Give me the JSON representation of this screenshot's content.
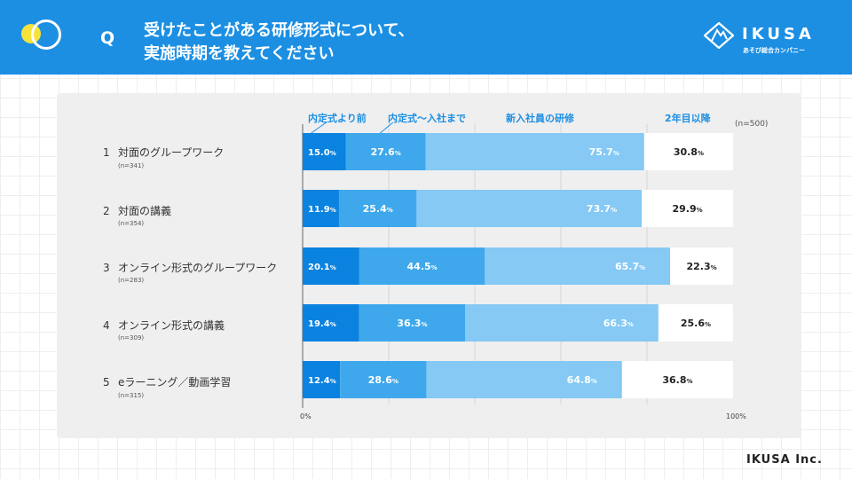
{
  "header": {
    "q": "Q",
    "title_line1": "受けたことがある研修形式について、",
    "title_line2": "実施時期を教えてください",
    "logo_text": "IKUSA",
    "logo_sub": "あそび総合カンパニー"
  },
  "footer": {
    "brand": "IKUSA Inc."
  },
  "colors": {
    "header_bg": "#1c8fe3",
    "seg1": "#0a82e0",
    "seg2": "#3fa8ec",
    "seg3": "#85c9f4",
    "seg4": "#ffffff"
  },
  "chart_data": {
    "type": "bar",
    "orientation": "horizontal",
    "title": "受けたことがある研修形式について、実施時期を教えてください",
    "n_total": "(n=500)",
    "legend": [
      "内定式より前",
      "内定式〜入社まで",
      "新入社員の研修",
      "2年目以降"
    ],
    "categories": [
      "対面のグループワーク",
      "対面の講義",
      "オンライン形式のグループワーク",
      "オンライン形式の講義",
      "eラーニング／動画学習"
    ],
    "category_numbers": [
      "1",
      "2",
      "3",
      "4",
      "5"
    ],
    "category_n": [
      "(n=341)",
      "(n=354)",
      "(n=283)",
      "(n=309)",
      "(n=315)"
    ],
    "series": [
      {
        "name": "内定式より前",
        "values": [
          15.0,
          11.9,
          20.1,
          19.4,
          12.4
        ]
      },
      {
        "name": "内定式〜入社まで",
        "values": [
          27.6,
          25.4,
          44.5,
          36.3,
          28.6
        ]
      },
      {
        "name": "新入社員の研修",
        "values": [
          75.7,
          73.7,
          65.7,
          66.3,
          64.8
        ]
      },
      {
        "name": "2年目以降",
        "values": [
          30.8,
          29.9,
          22.3,
          25.6,
          36.8
        ]
      }
    ],
    "value_unit": "%",
    "xlim": [
      0,
      100
    ],
    "axis_labels": [
      "0%",
      "100%"
    ]
  }
}
